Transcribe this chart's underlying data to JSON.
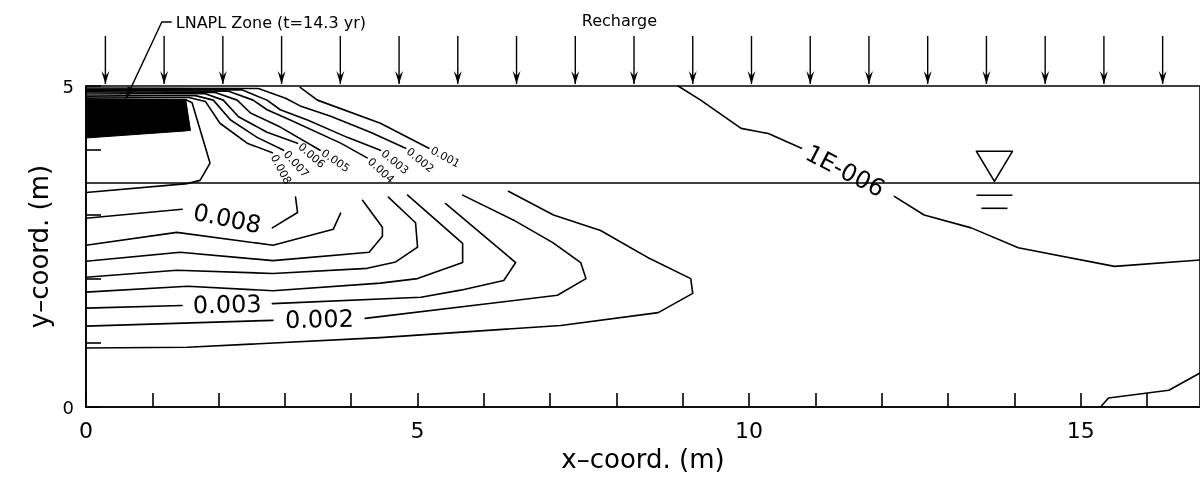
{
  "chart_data": {
    "type": "line",
    "xlabel": "x–coord. (m)",
    "ylabel": "y–coord. (m)",
    "xlim": [
      0,
      16.8
    ],
    "ylim": [
      0,
      5
    ],
    "xticks": [
      0,
      {
        "value": 1,
        "label": null
      },
      {
        "value": 2,
        "label": null
      },
      {
        "value": 3,
        "label": null
      },
      {
        "value": 4,
        "label": null
      },
      5,
      {
        "value": 6,
        "label": null
      },
      {
        "value": 7,
        "label": null
      },
      {
        "value": 8,
        "label": null
      },
      {
        "value": 9,
        "label": null
      },
      10,
      {
        "value": 11,
        "label": null
      },
      {
        "value": 12,
        "label": null
      },
      {
        "value": 13,
        "label": null
      },
      {
        "value": 14,
        "label": null
      },
      15,
      {
        "value": 16,
        "label": null
      }
    ],
    "yticks": [
      0,
      {
        "value": 1,
        "label": null
      },
      {
        "value": 2,
        "label": null
      },
      {
        "value": 3,
        "label": null
      },
      {
        "value": 4,
        "label": null
      },
      5
    ],
    "series": [
      {
        "color": "#000000",
        "x": [
          0,
          1.5,
          1.57
        ],
        "values": [
          4.78,
          4.78,
          4.31
        ],
        "lower": [
          4.19,
          4.3,
          4.31
        ],
        "upper": [
          4.78,
          4.78,
          4.31
        ]
      },
      {
        "color": "#000000",
        "x": [
          0,
          1.5,
          1.6,
          1.87,
          1.72,
          1.53,
          0
        ],
        "values": [
          4.8,
          4.79,
          4.74,
          3.8,
          3.53,
          3.48,
          3.34
        ]
      },
      {
        "name": "0.008",
        "color": "#000000",
        "x": [
          0,
          1.55,
          1.8,
          2.02,
          2.43,
          2.81,
          2.97,
          3.16,
          3.19,
          2.81,
          2.13,
          1.45,
          0
        ],
        "values": [
          4.83,
          4.82,
          4.76,
          4.42,
          4.11,
          3.96,
          null,
          3.27,
          3.03,
          2.79,
          null,
          3.08,
          2.94
        ]
      },
      {
        "name": "0.007",
        "color": "#000000",
        "x": [
          0,
          1.65,
          1.92,
          2.18,
          2.58,
          2.98,
          3.4,
          3.84,
          3.73,
          2.82,
          1.37,
          0
        ],
        "values": [
          4.86,
          4.85,
          4.78,
          4.47,
          4.2,
          4.0,
          null,
          3.02,
          2.77,
          2.52,
          2.72,
          2.52
        ]
      },
      {
        "name": "0.006",
        "color": "#000000",
        "x": [
          0,
          1.8,
          2.07,
          2.3,
          2.73,
          3.19,
          3.68,
          4.17,
          4.47,
          4.47,
          4.27,
          2.82,
          1.42,
          0
        ],
        "values": [
          4.89,
          4.88,
          4.78,
          4.52,
          4.28,
          4.11,
          null,
          3.22,
          2.8,
          2.66,
          2.41,
          2.28,
          2.41,
          2.27
        ]
      },
      {
        "name": "0.005",
        "color": "#000000",
        "x": [
          0,
          1.95,
          2.28,
          2.48,
          2.93,
          3.53,
          4.05,
          4.56,
          4.97,
          5.0,
          4.67,
          4.24,
          2.82,
          1.37,
          0
        ],
        "values": [
          4.91,
          4.9,
          4.78,
          4.58,
          4.36,
          4.0,
          null,
          3.27,
          2.87,
          2.49,
          2.26,
          2.16,
          2.08,
          2.13,
          2.02
        ]
      },
      {
        "name": "0.004",
        "color": "#000000",
        "x": [
          0,
          2.15,
          2.52,
          2.73,
          3.08,
          3.84,
          4.24,
          4.54,
          4.85,
          5.68,
          5.68,
          5.0,
          4.44,
          2.82,
          1.53,
          0
        ],
        "values": [
          4.93,
          4.92,
          4.78,
          4.63,
          4.47,
          4.11,
          3.88,
          null,
          3.3,
          2.55,
          2.25,
          2.0,
          1.93,
          1.81,
          1.88,
          1.79
        ]
      },
      {
        "name": "0.003",
        "color": "#000000",
        "x": [
          0,
          2.35,
          2.73,
          2.93,
          3.34,
          3.94,
          4.44,
          4.93,
          5.42,
          6.48,
          6.3,
          5.65,
          5.05,
          2.81,
          2.13,
          1.45,
          0
        ],
        "values": [
          4.95,
          4.94,
          4.78,
          4.63,
          4.47,
          4.2,
          4.0,
          null,
          3.17,
          2.25,
          1.97,
          1.82,
          1.71,
          1.61,
          null,
          1.58,
          1.54
        ]
      },
      {
        "name": "0.002",
        "color": "#000000",
        "x": [
          0,
          2.6,
          3.01,
          3.23,
          3.69,
          4.29,
          4.82,
          5.25,
          5.68,
          6.45,
          7.04,
          7.46,
          7.54,
          7.11,
          4.21,
          3.52,
          2.82,
          0
        ],
        "values": [
          4.97,
          4.96,
          4.81,
          4.69,
          4.53,
          4.28,
          4.03,
          null,
          3.3,
          2.91,
          2.56,
          2.25,
          2.0,
          1.74,
          1.38,
          null,
          1.35,
          1.26
        ]
      },
      {
        "name": "0.001",
        "color": "#000000",
        "x": [
          3.23,
          3.49,
          4.44,
          5.17,
          5.77,
          6.37,
          7.05,
          7.76,
          8.47,
          9.12,
          9.15,
          8.63,
          7.16,
          4.44,
          1.53,
          0
        ],
        "values": [
          4.98,
          4.78,
          4.42,
          4.03,
          null,
          3.36,
          2.99,
          2.75,
          2.33,
          2.0,
          1.77,
          1.47,
          1.27,
          1.08,
          0.93,
          0.92
        ]
      },
      {
        "name": "1E-006",
        "color": "#000000",
        "x": [
          8.93,
          9.27,
          9.88,
          10.29,
          10.79,
          11.45,
          12.19,
          12.64,
          13.35,
          14.06,
          15.51,
          16.8
        ],
        "values": [
          5.0,
          4.78,
          4.34,
          4.26,
          4.03,
          null,
          3.28,
          2.99,
          2.79,
          2.48,
          2.19,
          2.29
        ]
      },
      {
        "color": "#000000",
        "x": [
          15.3,
          15.42,
          16.33,
          16.8
        ],
        "values": [
          0,
          0.14,
          0.26,
          0.53
        ]
      }
    ],
    "ref_lines": [
      {
        "axis": "y",
        "value": 3.5,
        "color": "#000000"
      }
    ],
    "annotations": [
      {
        "text": "LNAPL Zone (t=14.3 yr)",
        "x": 0.6,
        "y": 4.8
      },
      "Recharge"
    ]
  }
}
